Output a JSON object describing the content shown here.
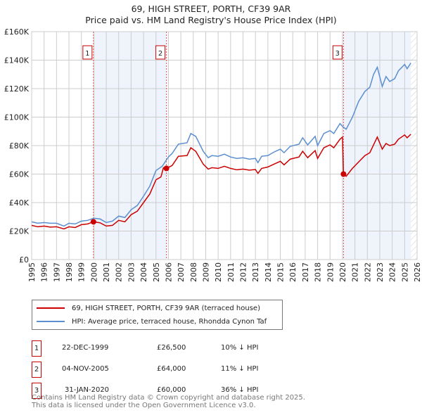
{
  "title": "69, HIGH STREET, PORTH, CF39 9AR",
  "subtitle": "Price paid vs. HM Land Registry's House Price Index (HPI)",
  "chart_data": {
    "type": "line",
    "xlim": [
      1995,
      2026
    ],
    "ylim": [
      0,
      160000
    ],
    "yticks": [
      {
        "v": 0,
        "label": "£0"
      },
      {
        "v": 20000,
        "label": "£20K"
      },
      {
        "v": 40000,
        "label": "£40K"
      },
      {
        "v": 60000,
        "label": "£60K"
      },
      {
        "v": 80000,
        "label": "£80K"
      },
      {
        "v": 100000,
        "label": "£100K"
      },
      {
        "v": 120000,
        "label": "£120K"
      },
      {
        "v": 140000,
        "label": "£140K"
      },
      {
        "v": 160000,
        "label": "£160K"
      }
    ],
    "xticks": [
      "1995",
      "1996",
      "1997",
      "1998",
      "1999",
      "2000",
      "2001",
      "2002",
      "2003",
      "2004",
      "2005",
      "2006",
      "2007",
      "2008",
      "2009",
      "2010",
      "2011",
      "2012",
      "2013",
      "2014",
      "2015",
      "2016",
      "2017",
      "2018",
      "2019",
      "2020",
      "2021",
      "2022",
      "2023",
      "2024",
      "2025",
      "2026"
    ],
    "series": [
      {
        "name": "69, HIGH STREET, PORTH, CF39 9AR (terraced house)",
        "color": "#cc0000",
        "points": [
          [
            1995,
            24000
          ],
          [
            1995.5,
            23000
          ],
          [
            1996,
            23500
          ],
          [
            1996.5,
            22800
          ],
          [
            1997,
            23000
          ],
          [
            1997.6,
            21500
          ],
          [
            1998,
            23000
          ],
          [
            1998.5,
            22500
          ],
          [
            1999,
            24500
          ],
          [
            1999.5,
            25000
          ],
          [
            1999.97,
            26500
          ],
          [
            2000.5,
            25800
          ],
          [
            2001,
            23500
          ],
          [
            2001.5,
            24000
          ],
          [
            2002,
            27500
          ],
          [
            2002.5,
            26500
          ],
          [
            2003,
            31500
          ],
          [
            2003.5,
            34000
          ],
          [
            2004,
            40000
          ],
          [
            2004.5,
            46000
          ],
          [
            2005,
            56000
          ],
          [
            2005.4,
            58000
          ],
          [
            2005.6,
            64500
          ],
          [
            2005.84,
            64000
          ],
          [
            2006.3,
            66000
          ],
          [
            2006.8,
            72500
          ],
          [
            2007.5,
            73000
          ],
          [
            2007.8,
            78500
          ],
          [
            2008.2,
            76000
          ],
          [
            2008.8,
            67000
          ],
          [
            2009.2,
            63500
          ],
          [
            2009.5,
            64500
          ],
          [
            2010,
            64000
          ],
          [
            2010.5,
            65500
          ],
          [
            2011,
            64000
          ],
          [
            2011.5,
            63000
          ],
          [
            2012,
            63500
          ],
          [
            2012.5,
            62800
          ],
          [
            2013,
            63200
          ],
          [
            2013.2,
            60500
          ],
          [
            2013.5,
            64000
          ],
          [
            2014,
            65000
          ],
          [
            2014.5,
            67000
          ],
          [
            2015,
            69000
          ],
          [
            2015.3,
            66500
          ],
          [
            2015.8,
            70500
          ],
          [
            2016.5,
            72000
          ],
          [
            2016.8,
            76000
          ],
          [
            2017.2,
            71500
          ],
          [
            2017.8,
            76500
          ],
          [
            2018,
            71000
          ],
          [
            2018.5,
            78500
          ],
          [
            2019,
            80500
          ],
          [
            2019.3,
            78500
          ],
          [
            2019.8,
            84500
          ],
          [
            2020.0,
            86000
          ],
          [
            2020.08,
            60000
          ],
          [
            2020.3,
            58500
          ],
          [
            2020.8,
            64000
          ],
          [
            2021.3,
            68500
          ],
          [
            2021.8,
            73000
          ],
          [
            2022.2,
            75000
          ],
          [
            2022.5,
            80500
          ],
          [
            2022.8,
            86000
          ],
          [
            2023.2,
            77500
          ],
          [
            2023.5,
            81500
          ],
          [
            2023.8,
            80000
          ],
          [
            2024.2,
            81000
          ],
          [
            2024.5,
            84500
          ],
          [
            2025,
            87500
          ],
          [
            2025.2,
            85500
          ],
          [
            2025.5,
            88000
          ]
        ]
      },
      {
        "name": "HPI: Average price, terraced house, Rhondda Cynon Taf",
        "color": "#5b8fd0",
        "points": [
          [
            1995,
            26500
          ],
          [
            1995.5,
            25500
          ],
          [
            1996,
            26000
          ],
          [
            1996.5,
            25500
          ],
          [
            1997,
            25500
          ],
          [
            1997.6,
            23500
          ],
          [
            1998,
            25500
          ],
          [
            1998.5,
            25000
          ],
          [
            1999,
            27000
          ],
          [
            1999.5,
            27500
          ],
          [
            2000,
            29000
          ],
          [
            2000.5,
            28500
          ],
          [
            2001,
            26000
          ],
          [
            2001.5,
            27000
          ],
          [
            2002,
            30500
          ],
          [
            2002.5,
            29500
          ],
          [
            2003,
            35000
          ],
          [
            2003.5,
            38000
          ],
          [
            2004,
            44500
          ],
          [
            2004.5,
            51500
          ],
          [
            2005,
            62500
          ],
          [
            2005.5,
            65500
          ],
          [
            2006,
            72000
          ],
          [
            2006.3,
            74500
          ],
          [
            2006.8,
            81000
          ],
          [
            2007.5,
            82000
          ],
          [
            2007.8,
            88500
          ],
          [
            2008.2,
            86500
          ],
          [
            2008.8,
            76000
          ],
          [
            2009.2,
            71500
          ],
          [
            2009.5,
            73000
          ],
          [
            2010,
            72500
          ],
          [
            2010.5,
            74000
          ],
          [
            2011,
            72000
          ],
          [
            2011.5,
            71000
          ],
          [
            2012,
            71500
          ],
          [
            2012.5,
            70500
          ],
          [
            2013,
            71000
          ],
          [
            2013.2,
            68000
          ],
          [
            2013.5,
            72500
          ],
          [
            2014,
            73000
          ],
          [
            2014.5,
            75500
          ],
          [
            2015,
            77500
          ],
          [
            2015.3,
            75000
          ],
          [
            2015.8,
            79500
          ],
          [
            2016.5,
            81000
          ],
          [
            2016.8,
            85500
          ],
          [
            2017.2,
            80500
          ],
          [
            2017.8,
            86500
          ],
          [
            2018,
            80000
          ],
          [
            2018.5,
            88500
          ],
          [
            2019,
            90500
          ],
          [
            2019.3,
            88500
          ],
          [
            2019.8,
            95500
          ],
          [
            2020,
            93500
          ],
          [
            2020.3,
            91500
          ],
          [
            2020.8,
            100000
          ],
          [
            2021.3,
            111000
          ],
          [
            2021.8,
            118000
          ],
          [
            2022.2,
            121000
          ],
          [
            2022.5,
            130000
          ],
          [
            2022.8,
            135000
          ],
          [
            2023.2,
            121500
          ],
          [
            2023.5,
            128500
          ],
          [
            2023.8,
            125000
          ],
          [
            2024.2,
            127000
          ],
          [
            2024.5,
            132500
          ],
          [
            2025,
            137000
          ],
          [
            2025.2,
            134000
          ],
          [
            2025.5,
            138000
          ]
        ]
      }
    ],
    "sales": [
      {
        "label": "1",
        "x": 1999.97,
        "y": 26500
      },
      {
        "label": "2",
        "x": 2005.84,
        "y": 64000
      },
      {
        "label": "3",
        "x": 2020.08,
        "y": 60000
      }
    ],
    "shaded": [
      [
        1999.97,
        2005.84
      ],
      [
        2020.08,
        2025.5
      ]
    ],
    "hatch_from": 2025.5
  },
  "legend": [
    "69, HIGH STREET, PORTH, CF39 9AR (terraced house)",
    "HPI: Average price, terraced house, Rhondda Cynon Taf"
  ],
  "transactions": [
    {
      "num": "1",
      "date": "22-DEC-1999",
      "price": "£26,500",
      "hpi": "10% ↓ HPI"
    },
    {
      "num": "2",
      "date": "04-NOV-2005",
      "price": "£64,000",
      "hpi": "11% ↓ HPI"
    },
    {
      "num": "3",
      "date": "31-JAN-2020",
      "price": "£60,000",
      "hpi": "36% ↓ HPI"
    }
  ],
  "footer": [
    "Contains HM Land Registry data © Crown copyright and database right 2025.",
    "This data is licensed under the Open Government Licence v3.0."
  ]
}
